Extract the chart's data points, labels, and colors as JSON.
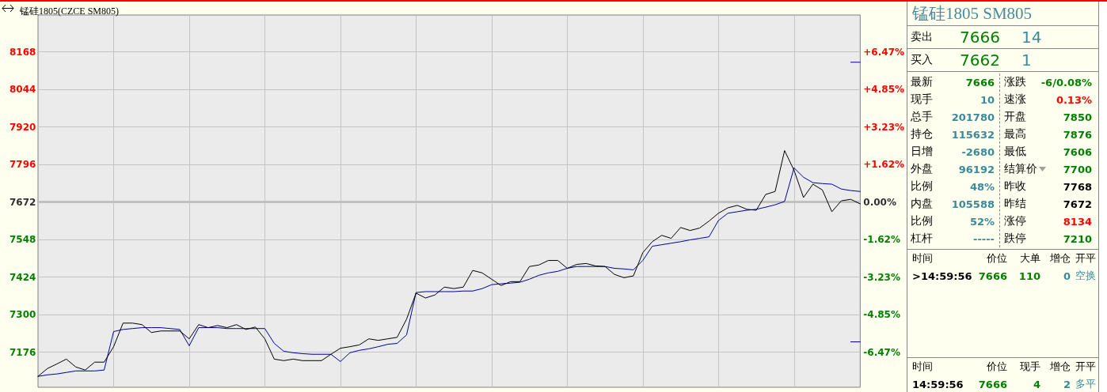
{
  "chart_data": [
    {
      "type": "line",
      "title": "锰硅1805(CZCE SM805)",
      "categories": [
        null,
        null,
        null,
        null,
        null,
        null,
        null,
        null,
        null,
        null,
        null,
        null,
        null,
        null,
        null,
        null,
        null,
        null,
        null,
        null,
        null,
        null,
        null,
        null,
        null,
        null,
        null,
        null,
        null,
        null,
        null,
        null,
        null,
        null,
        null,
        null,
        null,
        null,
        null,
        null,
        null,
        null,
        null,
        null,
        null,
        null,
        null,
        null,
        null,
        null,
        null,
        null,
        null,
        null,
        null,
        null,
        null,
        null,
        null,
        null,
        null,
        null,
        null,
        null,
        null,
        null,
        null,
        null,
        null,
        null,
        null,
        null,
        null,
        null,
        null,
        null,
        null,
        null,
        null,
        null,
        null,
        null,
        null,
        null,
        null,
        null,
        null,
        null
      ],
      "series": [
        {
          "color": "#000000",
          "values": [
            7096,
            7122,
            7137,
            7153,
            7127,
            7117,
            7143,
            7143,
            7194,
            7272,
            7272,
            7267,
            7241,
            7246,
            7246,
            7246,
            7220,
            7267,
            7257,
            7264,
            7257,
            7267,
            7251,
            7259,
            7220,
            7153,
            7148,
            7153,
            7148,
            7148,
            7148,
            7169,
            7189,
            7194,
            7200,
            7220,
            7215,
            7220,
            7225,
            7285,
            7371,
            7355,
            7365,
            7391,
            7386,
            7391,
            7446,
            7438,
            7417,
            7396,
            7409,
            7409,
            7459,
            7464,
            7479,
            7479,
            7453,
            7466,
            7469,
            7461,
            7459,
            7433,
            7422,
            7428,
            7505,
            7541,
            7562,
            7552,
            7588,
            7578,
            7586,
            7609,
            7635,
            7653,
            7661,
            7648,
            7645,
            7697,
            7707,
            7842,
            7777,
            7687,
            7731,
            7712,
            7640,
            7676,
            7681,
            7666
          ]
        },
        {
          "color": "#0000a0",
          "values": [
            7096,
            7101,
            7104,
            7109,
            7114,
            7114,
            7114,
            7117,
            7244,
            7251,
            7254,
            7257,
            7257,
            7257,
            7254,
            7251,
            7197,
            7257,
            7257,
            7257,
            7254,
            7254,
            7254,
            7254,
            7254,
            7205,
            7179,
            7174,
            7171,
            7169,
            7169,
            7169,
            7145,
            7174,
            7182,
            7187,
            7194,
            7202,
            7205,
            7233,
            7373,
            7376,
            7376,
            7376,
            7376,
            7378,
            7378,
            7386,
            7399,
            7402,
            7404,
            7407,
            7417,
            7430,
            7438,
            7443,
            7453,
            7459,
            7459,
            7459,
            7459,
            7453,
            7451,
            7448,
            7479,
            7526,
            7531,
            7536,
            7541,
            7547,
            7552,
            7557,
            7611,
            7635,
            7640,
            7645,
            7648,
            7655,
            7663,
            7674,
            7785,
            7754,
            7736,
            7733,
            7731,
            7715,
            7710,
            7707
          ]
        },
        {
          "color": "#0000a0",
          "values": [
            null,
            null,
            null,
            null,
            null,
            null,
            null,
            null,
            null,
            null,
            null,
            null,
            null,
            null,
            null,
            null,
            null,
            null,
            null,
            null,
            null,
            null,
            null,
            null,
            null,
            null,
            null,
            null,
            null,
            null,
            null,
            null,
            null,
            null,
            null,
            null,
            null,
            null,
            null,
            null,
            null,
            null,
            null,
            null,
            null,
            null,
            null,
            null,
            null,
            null,
            null,
            null,
            null,
            null,
            null,
            null,
            null,
            null,
            null,
            null,
            null,
            null,
            null,
            null,
            null,
            null,
            null,
            null,
            null,
            null,
            null,
            null,
            null,
            null,
            null,
            null,
            null,
            null,
            null,
            null,
            null,
            null,
            null,
            null,
            null,
            null,
            8134,
            8134
          ]
        },
        {
          "color": "#0000a0",
          "values": [
            null,
            null,
            null,
            null,
            null,
            null,
            null,
            null,
            null,
            null,
            null,
            null,
            null,
            null,
            null,
            null,
            null,
            null,
            null,
            null,
            null,
            null,
            null,
            null,
            null,
            null,
            null,
            null,
            null,
            null,
            null,
            null,
            null,
            null,
            null,
            null,
            null,
            null,
            null,
            null,
            null,
            null,
            null,
            null,
            null,
            null,
            null,
            null,
            null,
            null,
            null,
            null,
            null,
            null,
            null,
            null,
            null,
            null,
            null,
            null,
            null,
            null,
            null,
            null,
            null,
            null,
            null,
            null,
            null,
            null,
            null,
            null,
            null,
            null,
            null,
            null,
            null,
            null,
            null,
            null,
            null,
            null,
            null,
            null,
            null,
            null,
            7210,
            7210
          ]
        }
      ],
      "ylim": [
        7060,
        8290
      ],
      "yticks": [
        7176,
        7300,
        7424,
        7548,
        7672,
        7796,
        7920,
        8044,
        8168
      ],
      "y2lim": [
        -7.98,
        8.06
      ],
      "y2ticks": [
        {
          "value": -6.47,
          "label": "-6.47%"
        },
        {
          "value": -4.85,
          "label": "-4.85%"
        },
        {
          "value": -3.23,
          "label": "-3.23%"
        },
        {
          "value": -1.62,
          "label": "-1.62%"
        },
        {
          "value": 0,
          "label": "0.00%"
        },
        {
          "value": 1.62,
          "label": "+1.62%"
        },
        {
          "value": 3.23,
          "label": "+3.23%"
        },
        {
          "value": 4.85,
          "label": "+4.85%"
        },
        {
          "value": 6.47,
          "label": "+6.47%"
        }
      ],
      "ref_lines": [
        {
          "axis": "y",
          "value": 7672,
          "color": "#c0c0c0"
        }
      ],
      "grid": true,
      "marker": "none",
      "line_style": "solid"
    },
    {
      "type": "other",
      "title": "锰硅1805  SM805",
      "annotations": [
        "卖出",
        "7666",
        "14",
        "买入",
        "7662",
        "1",
        "最新",
        "7666",
        "涨跌",
        "-6/0.08%",
        "现手",
        "10",
        "速涨",
        "0.13%",
        "总手",
        "201780",
        "开盘",
        "7850",
        "持仓",
        "115632",
        "最高",
        "7876",
        "日增",
        "-2680",
        "最低",
        "7606",
        "外盘",
        "96192",
        "结算价",
        "7700",
        "比例",
        "48%",
        "昨收",
        "7768",
        "内盘",
        "105588",
        "昨结",
        "7672",
        "比例",
        "52%",
        "涨停",
        "8134",
        "杠杆",
        "-----",
        "跌停",
        "7210",
        "时间",
        "价位",
        "大单",
        "增仓",
        "开平",
        ">14:59:56",
        "7666",
        "110",
        "0",
        "空换",
        "时间",
        "价位",
        "现手",
        "增仓",
        "开平",
        "14:59:56",
        "7666",
        "4",
        "2",
        "多平"
      ]
    }
  ]
}
